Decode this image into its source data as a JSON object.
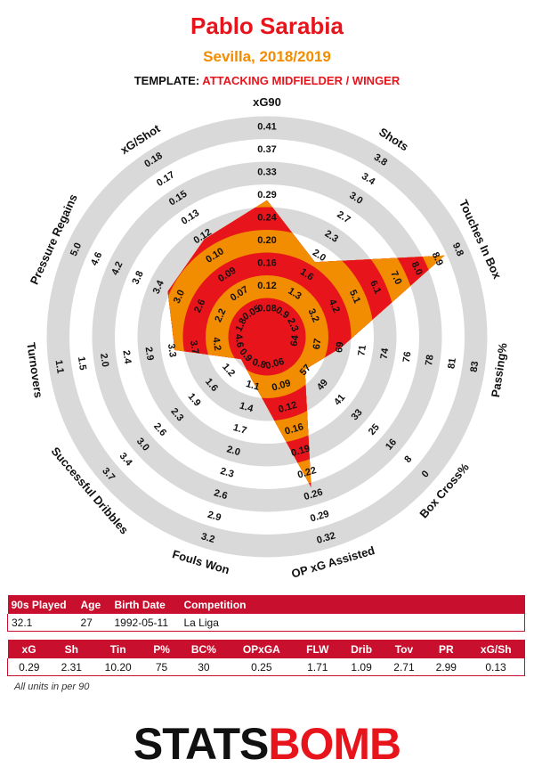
{
  "header": {
    "player": "Pablo Sarabia",
    "team_season": "Sevilla, 2018/2019",
    "template_label": "TEMPLATE:",
    "template_value": "ATTACKING MIDFIELDER / WINGER"
  },
  "colors": {
    "accent_red": "#e8141c",
    "accent_orange": "#f28c00",
    "ring_grey": "#d9d9d9",
    "header_red": "#c8102e"
  },
  "chart_data": {
    "type": "radar",
    "axes": [
      {
        "name": "xG90",
        "ticks": [
          "0.08",
          "0.12",
          "0.16",
          "0.20",
          "0.24",
          "0.29",
          "0.33",
          "0.37",
          "0.41"
        ],
        "value_level": 5.3
      },
      {
        "name": "Shots",
        "ticks": [
          "1.3",
          "1.6",
          "2.0",
          "2.3",
          "2.7",
          "3.0",
          "3.4",
          "3.8"
        ],
        "value_level": 3.2
      },
      {
        "name": "Touches In Box",
        "ticks": [
          "4.2",
          "5.1",
          "6.1",
          "7.0",
          "8.0",
          "8.9",
          "9.8"
        ],
        "value_level": 7.9
      },
      {
        "name": "Passing%",
        "ticks": [
          "69",
          "71",
          "74",
          "76",
          "78",
          "81",
          "83"
        ],
        "value_level": 2.6
      },
      {
        "name": "Box Cross%",
        "ticks": [
          "41",
          "33",
          "25",
          "16",
          "8",
          "0"
        ],
        "value_level": 1.5
      },
      {
        "name": "OP xG Assisted",
        "ticks": [
          "0.09",
          "0.12",
          "0.16",
          "0.19",
          "0.22",
          "0.26",
          "0.29",
          "0.32"
        ],
        "value_level": 6.2
      },
      {
        "name": "Fouls Won",
        "ticks": [
          "1.1",
          "1.4",
          "1.7",
          "2.0",
          "2.3",
          "2.6",
          "2.9",
          "3.2"
        ],
        "value_level": 1.4
      },
      {
        "name": "Successful Dribbles",
        "ticks": [
          "1.2",
          "1.6",
          "1.9",
          "2.3",
          "2.6",
          "3.0",
          "3.4",
          "3.7"
        ],
        "value_level": 0.8
      },
      {
        "name": "Turnovers",
        "ticks": [
          "3.7",
          "3.3",
          "2.9",
          "2.4",
          "2.0",
          "1.5",
          "1.1"
        ],
        "value_level": 3.4
      },
      {
        "name": "Pressure Regains",
        "ticks": [
          "2.6",
          "3.0",
          "3.4",
          "3.8",
          "4.2",
          "4.6",
          "5.0"
        ],
        "value_level": 4.1
      },
      {
        "name": "xG/Shot",
        "ticks": [
          "0.07",
          "0.09",
          "0.10",
          "0.12",
          "0.13",
          "0.15",
          "0.17",
          "0.18"
        ],
        "value_level": 4.4
      }
    ],
    "inner_ticks": [
      [
        "0.06"
      ],
      [
        "0.9"
      ],
      [
        "2.3",
        "3.2"
      ],
      [
        "64",
        "67"
      ],
      [
        "57",
        "49"
      ],
      [
        "0.06"
      ],
      [
        "0.8"
      ],
      [
        "0.9"
      ],
      [
        "4.6",
        "4.2"
      ],
      [
        "1.8",
        "2.2"
      ],
      [
        "0.05"
      ]
    ],
    "ring_levels": 9,
    "grid": false,
    "legend": "none"
  },
  "table1": {
    "headers": [
      "90s Played",
      "Age",
      "Birth Date",
      "Competition"
    ],
    "values": [
      "32.1",
      "27",
      "1992-05-11",
      "La Liga"
    ]
  },
  "table2": {
    "headers": [
      "xG",
      "Sh",
      "Tin",
      "P%",
      "BC%",
      "OPxGA",
      "FLW",
      "Drib",
      "Tov",
      "PR",
      "xG/Sh"
    ],
    "values": [
      "0.29",
      "2.31",
      "10.20",
      "75",
      "30",
      "0.25",
      "1.71",
      "1.09",
      "2.71",
      "2.99",
      "0.13"
    ]
  },
  "footer": {
    "units_note": "All units in per 90",
    "logo_part1": "STATS",
    "logo_part2": "BOMB"
  }
}
